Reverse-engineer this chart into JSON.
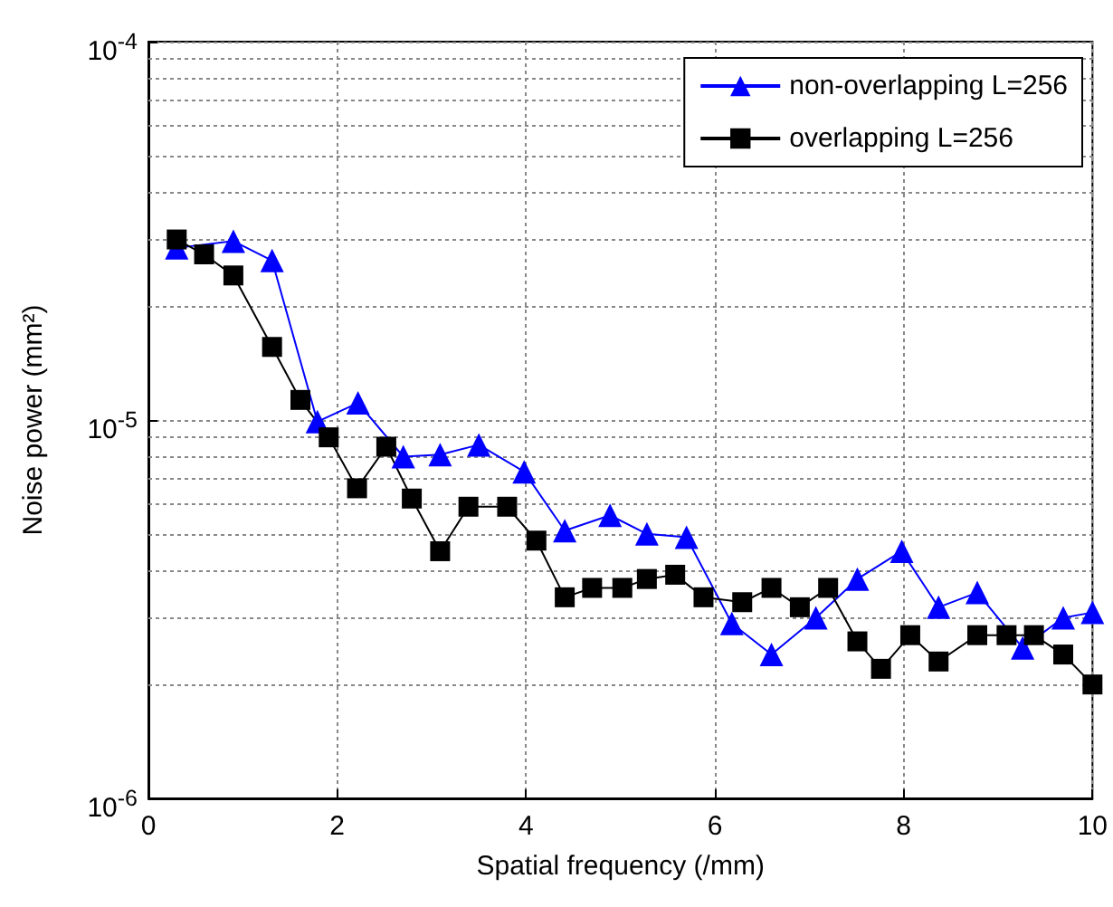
{
  "chart_data": {
    "type": "line",
    "xlabel": "Spatial frequency (/mm)",
    "ylabel": "Noise power (mm²)",
    "xlim": [
      0,
      10
    ],
    "xticks": [
      0,
      2,
      4,
      6,
      8,
      10
    ],
    "ylim": [
      1e-06,
      0.0001
    ],
    "yticks": [
      {
        "value": 1e-06,
        "label": "10$^{-6}$"
      },
      {
        "value": 1e-05,
        "label": "10$^{-5}$"
      },
      {
        "value": 0.0001,
        "label": "10$^{-4}$"
      }
    ],
    "log": "y",
    "grid": true,
    "legend": "top right",
    "line_style": "solid",
    "series": [
      {
        "name": "non-overlapping L=256",
        "color": "#0000ff",
        "marker": "triangle",
        "x": [
          0.3,
          0.9,
          1.31,
          1.79,
          2.22,
          2.7,
          3.09,
          3.5,
          3.98,
          4.41,
          4.89,
          5.28,
          5.7,
          6.18,
          6.6,
          7.07,
          7.51,
          7.98,
          8.37,
          8.78,
          9.26,
          9.69,
          10
        ],
        "values": [
          2.85e-05,
          2.97e-05,
          2.64e-05,
          9.9e-06,
          1.11e-05,
          8e-06,
          8.1e-06,
          8.6e-06,
          7.3e-06,
          5.1e-06,
          5.6e-06,
          5e-06,
          4.9e-06,
          2.9e-06,
          2.4e-06,
          3e-06,
          3.8e-06,
          4.5e-06,
          3.2e-06,
          3.5e-06,
          2.5e-06,
          3e-06,
          3.1e-06
        ]
      },
      {
        "name": "overlapping L=256",
        "color": "#000000",
        "marker": "square",
        "x": [
          0.3,
          0.59,
          0.9,
          1.31,
          1.61,
          1.91,
          2.21,
          2.52,
          2.79,
          3.09,
          3.39,
          3.8,
          4.11,
          4.41,
          4.7,
          5.02,
          5.28,
          5.58,
          5.88,
          6.29,
          6.6,
          6.9,
          7.2,
          7.51,
          7.76,
          8.07,
          8.37,
          8.78,
          9.09,
          9.38,
          9.69,
          10
        ],
        "values": [
          3e-05,
          2.74e-05,
          2.41e-05,
          1.56e-05,
          1.13e-05,
          9e-06,
          6.6e-06,
          8.5e-06,
          6.2e-06,
          4.5e-06,
          5.9e-06,
          5.9e-06,
          4.8e-06,
          3.4e-06,
          3.6e-06,
          3.6e-06,
          3.8e-06,
          3.9e-06,
          3.4e-06,
          3.3e-06,
          3.6e-06,
          3.2e-06,
          3.6e-06,
          2.6e-06,
          2.2e-06,
          2.7e-06,
          2.3e-06,
          2.7e-06,
          2.7e-06,
          2.7e-06,
          2.4e-06,
          2e-06
        ]
      }
    ]
  }
}
